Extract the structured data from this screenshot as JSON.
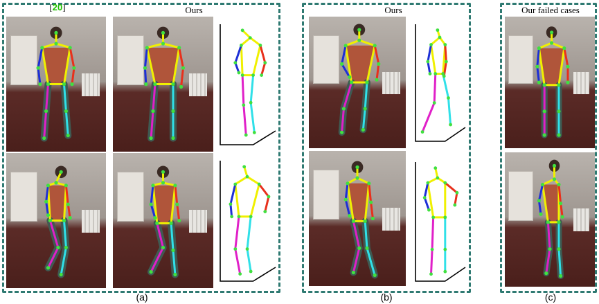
{
  "colors": {
    "frame": "#2f7a72",
    "torso": "#f0f000",
    "left_arm": "#1d2fd6",
    "right_arm": "#e8301c",
    "left_leg": "#e020c8",
    "right_leg": "#30e0e8",
    "joint": "#40e040"
  },
  "panel_a": {
    "ref_label": {
      "open": "[",
      "number": "20",
      "close": "]"
    },
    "ours_label": "Ours",
    "caption": "(a)"
  },
  "panel_b": {
    "ours_label": "Ours",
    "caption": "(b)"
  },
  "panel_c": {
    "title": "Our failed cases",
    "caption": "(c)"
  }
}
